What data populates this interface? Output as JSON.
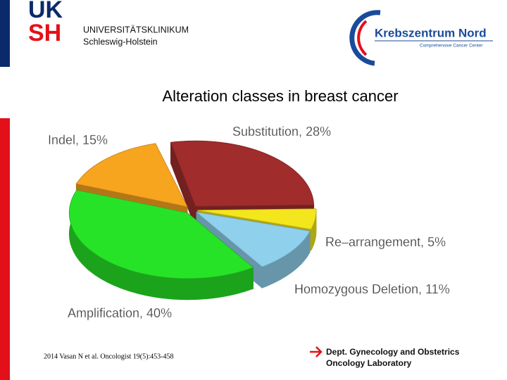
{
  "header": {
    "logo_top": "UK",
    "logo_bottom": "SH",
    "institution": "UNIVERSITÄTSKLINIKUM",
    "region": "Schleswig-Holstein",
    "partner": "Krebszentrum Nord",
    "partner_subtitle": "Comprehensive Cancer Center"
  },
  "chart_data": {
    "type": "pie",
    "title": "Alteration classes in breast cancer",
    "categories": [
      "Substitution, 28%",
      "Re–arrangement, 5%",
      "Homozygous Deletion, 11%",
      "Amplification, 40%",
      "Indel, 15%"
    ],
    "values": [
      28,
      5,
      11,
      40,
      15
    ],
    "colors": [
      "#a02c2c",
      "#f3e61c",
      "#8fd0ec",
      "#27e327",
      "#f7a51e"
    ]
  },
  "footer": {
    "citation": "2014 Vasan N et al. Oncologist 19(5):453-458",
    "department": "Dept. Gynecology and Obstetrics",
    "lab": "Oncology Laboratory"
  }
}
